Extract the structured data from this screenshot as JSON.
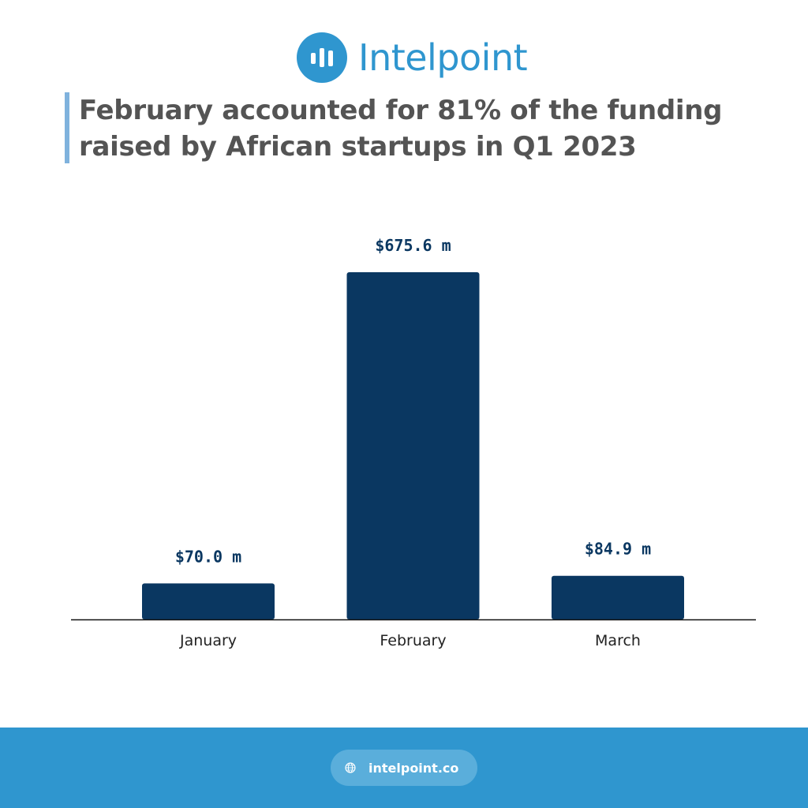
{
  "brand": {
    "name": "Intelpoint",
    "color": "#2f96cf"
  },
  "title": "February accounted for 81% of the funding raised by African startups in Q1 2023",
  "colors": {
    "bar": "#0a3761",
    "label": "#0a3761",
    "title": "#545454",
    "footer": "#2f96cf"
  },
  "chart_data": {
    "type": "bar",
    "categories": [
      "January",
      "February",
      "March"
    ],
    "values": [
      70.0,
      675.6,
      84.9
    ],
    "data_labels": [
      "$70.0 m",
      "$675.6 m",
      "$84.9 m"
    ],
    "unit": "$ m",
    "ylim": [
      0,
      675.6
    ],
    "grid": false,
    "legend": "none"
  },
  "footer": {
    "website": "intelpoint.co",
    "icon": "globe-icon"
  }
}
